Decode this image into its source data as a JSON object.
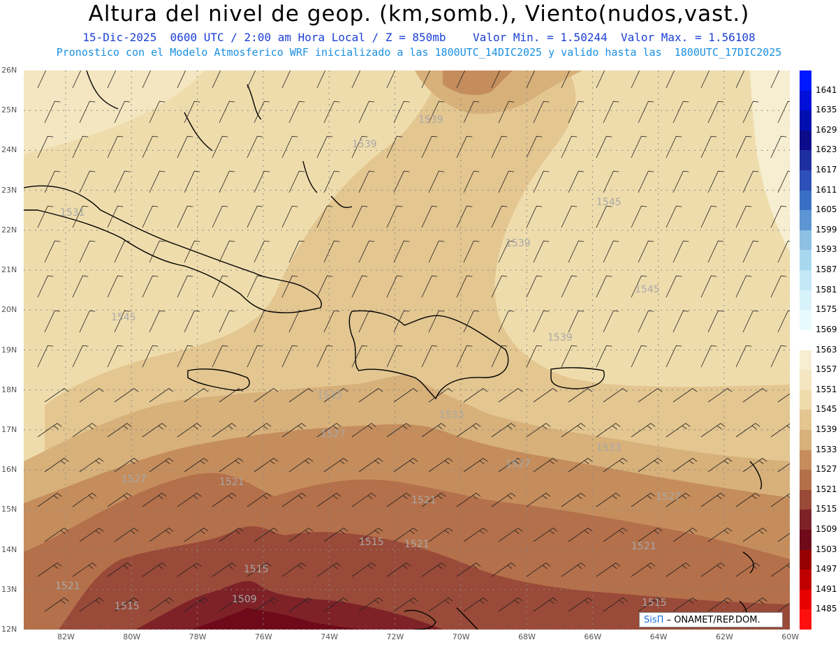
{
  "title": "Altura del nivel de geop. (km,somb.), Viento(nudos,vast.)",
  "subtitle_line1": "15-Dic-2025  0600 UTC / 2:00 am Hora Local / Z = 850mb    Valor Min. = 1.50244  Valor Max. = 1.56108",
  "subtitle_line2": "Pronostico con el Modelo Atmosferico WRF inicializado a las 1800UTC_14DIC2025 y valido hasta las  1800UTC_17DIC2025",
  "credit": {
    "brand": "SisΠ",
    "text": "– ONAMET/REP.DOM."
  },
  "lat_labels": [
    "26N",
    "25N",
    "24N",
    "23N",
    "22N",
    "21N",
    "20N",
    "19N",
    "18N",
    "17N",
    "16N",
    "15N",
    "14N",
    "13N",
    "12N"
  ],
  "lon_labels": [
    "82W",
    "80W",
    "78W",
    "76W",
    "74W",
    "72W",
    "70W",
    "68W",
    "66W",
    "64W",
    "62W",
    "60W"
  ],
  "colorbar": {
    "labels": [
      "1641",
      "1635",
      "1629",
      "1623",
      "1617",
      "1611",
      "1605",
      "1599",
      "1593",
      "1587",
      "1581",
      "1575",
      "1569",
      "1563",
      "1557",
      "1551",
      "1545",
      "1539",
      "1533",
      "1527",
      "1521",
      "1515",
      "1509",
      "1503",
      "1497",
      "1491",
      "1485"
    ],
    "colors": [
      "#0018ff",
      "#0010d8",
      "#000fb0",
      "#0c0c8a",
      "#1e2ea0",
      "#2c4fb8",
      "#3a70c4",
      "#5c95d2",
      "#8ec0e4",
      "#a8d8f0",
      "#c4e8f6",
      "#d8f2fa",
      "#e8fafd",
      "#ffffff",
      "#f6eed0",
      "#f3e6c0",
      "#efdcac",
      "#e3c690",
      "#d7b07a",
      "#c58d5c",
      "#b4704a",
      "#9a4a38",
      "#7e2228",
      "#6e0a1a",
      "#960000",
      "#c00000",
      "#e80000",
      "#ff1010"
    ]
  },
  "contour_labels": [
    "1539",
    "1539",
    "1539",
    "1539",
    "1545",
    "1545",
    "1545",
    "1531",
    "1533",
    "1533",
    "1533",
    "1527",
    "1527",
    "1527",
    "1527",
    "1521",
    "1521",
    "1521",
    "1521",
    "1521",
    "1515",
    "1515",
    "1515",
    "1515",
    "1509"
  ],
  "colors": {
    "title": "#000000",
    "sub1": "#1a3fd6",
    "sub2": "#1a8fe0",
    "coast": "#000000",
    "contour": "#a8a8a8"
  }
}
